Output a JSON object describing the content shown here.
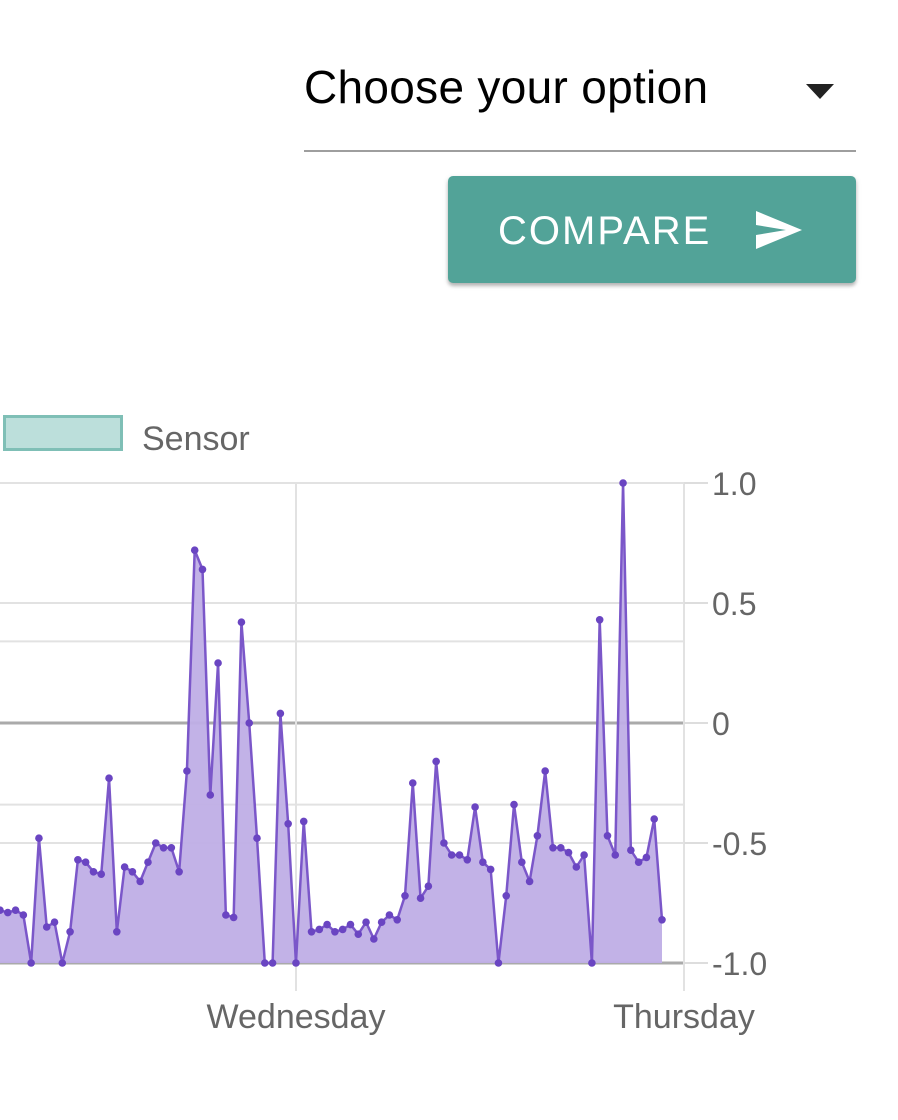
{
  "select": {
    "value": "Choose your option"
  },
  "compare_button": {
    "label": "COMPARE"
  },
  "icons": {
    "dropdown": "caret-down-icon",
    "send": "send-icon"
  },
  "colors": {
    "button": "#52a398",
    "line": "#7b57c9",
    "fill": "#bfaee6",
    "legend": "#bcdfdb"
  },
  "chart_data": {
    "type": "area",
    "legend": [
      "Sensor"
    ],
    "series": [
      {
        "name": "Sensor",
        "x": [
          0.0,
          0.02,
          0.04,
          0.06,
          0.08,
          0.1,
          0.12,
          0.14,
          0.16,
          0.18,
          0.2,
          0.22,
          0.24,
          0.26,
          0.28,
          0.3,
          0.32,
          0.34,
          0.36,
          0.38,
          0.4,
          0.42,
          0.44,
          0.46,
          0.48,
          0.5,
          0.52,
          0.54,
          0.56,
          0.58,
          0.6,
          0.62,
          0.64,
          0.66,
          0.68,
          0.7,
          0.72,
          0.74,
          0.76,
          0.78,
          0.8,
          0.82,
          0.84,
          0.86,
          0.88,
          0.9,
          0.92,
          0.94,
          0.96,
          0.98,
          1.0,
          1.02,
          1.04,
          1.06,
          1.08,
          1.1,
          1.12,
          1.14,
          1.16,
          1.18,
          1.2,
          1.22,
          1.24,
          1.26,
          1.28,
          1.3,
          1.32,
          1.34,
          1.36,
          1.38,
          1.4,
          1.42,
          1.44,
          1.46,
          1.48,
          1.5,
          1.52,
          1.54,
          1.56,
          1.58,
          1.6,
          1.62,
          1.64,
          1.66,
          1.68,
          1.7
        ],
        "values": [
          -0.78,
          -0.79,
          -0.78,
          -0.8,
          -1.0,
          -0.48,
          -0.85,
          -0.83,
          -1.0,
          -0.87,
          -0.57,
          -0.58,
          -0.62,
          -0.63,
          -0.23,
          -0.87,
          -0.6,
          -0.62,
          -0.66,
          -0.58,
          -0.5,
          -0.52,
          -0.52,
          -0.62,
          -0.2,
          0.72,
          0.64,
          -0.3,
          0.25,
          -0.8,
          -0.81,
          0.42,
          0.0,
          -0.48,
          -1.0,
          -1.0,
          0.04,
          -0.42,
          -1.0,
          -0.41,
          -0.87,
          -0.86,
          -0.84,
          -0.87,
          -0.86,
          -0.84,
          -0.88,
          -0.83,
          -0.9,
          -0.83,
          -0.8,
          -0.82,
          -0.72,
          -0.25,
          -0.73,
          -0.68,
          -0.16,
          -0.5,
          -0.55,
          -0.55,
          -0.57,
          -0.35,
          -0.58,
          -0.61,
          -1.0,
          -0.72,
          -0.34,
          -0.58,
          -0.66,
          -0.47,
          -0.2,
          -0.52,
          -0.52,
          -0.54,
          -0.6,
          -0.55,
          -1.0,
          0.43,
          -0.47,
          -0.55,
          1.0,
          -0.53,
          -0.58,
          -0.56,
          -0.4,
          -0.82
        ]
      }
    ],
    "x_ticks": [
      "Wednesday",
      "Thursday"
    ],
    "y_ticks": [
      "1.0",
      "0.5",
      "0",
      "-0.5",
      "-1.0"
    ],
    "ylim": [
      -1.0,
      1.0
    ],
    "y_axis_position": "right",
    "grid": true
  }
}
